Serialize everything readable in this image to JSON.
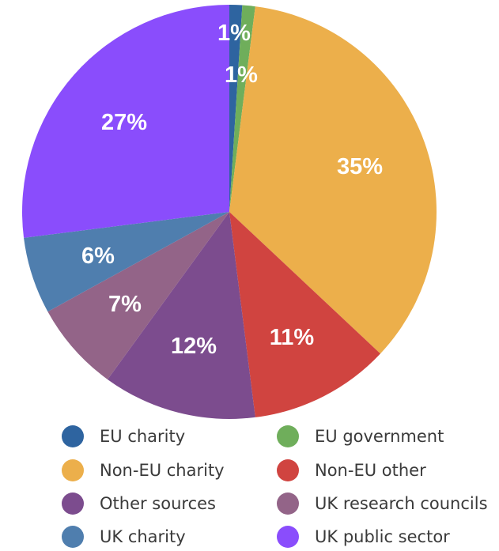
{
  "chart_data": {
    "type": "pie",
    "title": "",
    "slices": [
      {
        "label": "EU charity",
        "value": 1,
        "display": "1%",
        "color": "#2e64a0"
      },
      {
        "label": "EU government",
        "value": 1,
        "display": "1%",
        "color": "#6fae5b"
      },
      {
        "label": "Non-EU charity",
        "value": 35,
        "display": "35%",
        "color": "#ecaf4b"
      },
      {
        "label": "Non-EU other",
        "value": 11,
        "display": "11%",
        "color": "#d04440"
      },
      {
        "label": "Other sources",
        "value": 12,
        "display": "12%",
        "color": "#7c4c8e"
      },
      {
        "label": "UK research councils",
        "value": 7,
        "display": "7%",
        "color": "#936488"
      },
      {
        "label": "UK charity",
        "value": 6,
        "display": "6%",
        "color": "#4f7eae"
      },
      {
        "label": "UK public sector",
        "value": 27,
        "display": "27%",
        "color": "#8a4dfc"
      }
    ],
    "legend": {
      "placement": "bottom",
      "columns": 2,
      "entries": [
        "EU charity",
        "EU government",
        "Non-EU charity",
        "Non-EU other",
        "Other sources",
        "UK research councils",
        "UK charity",
        "UK public sector"
      ]
    }
  }
}
